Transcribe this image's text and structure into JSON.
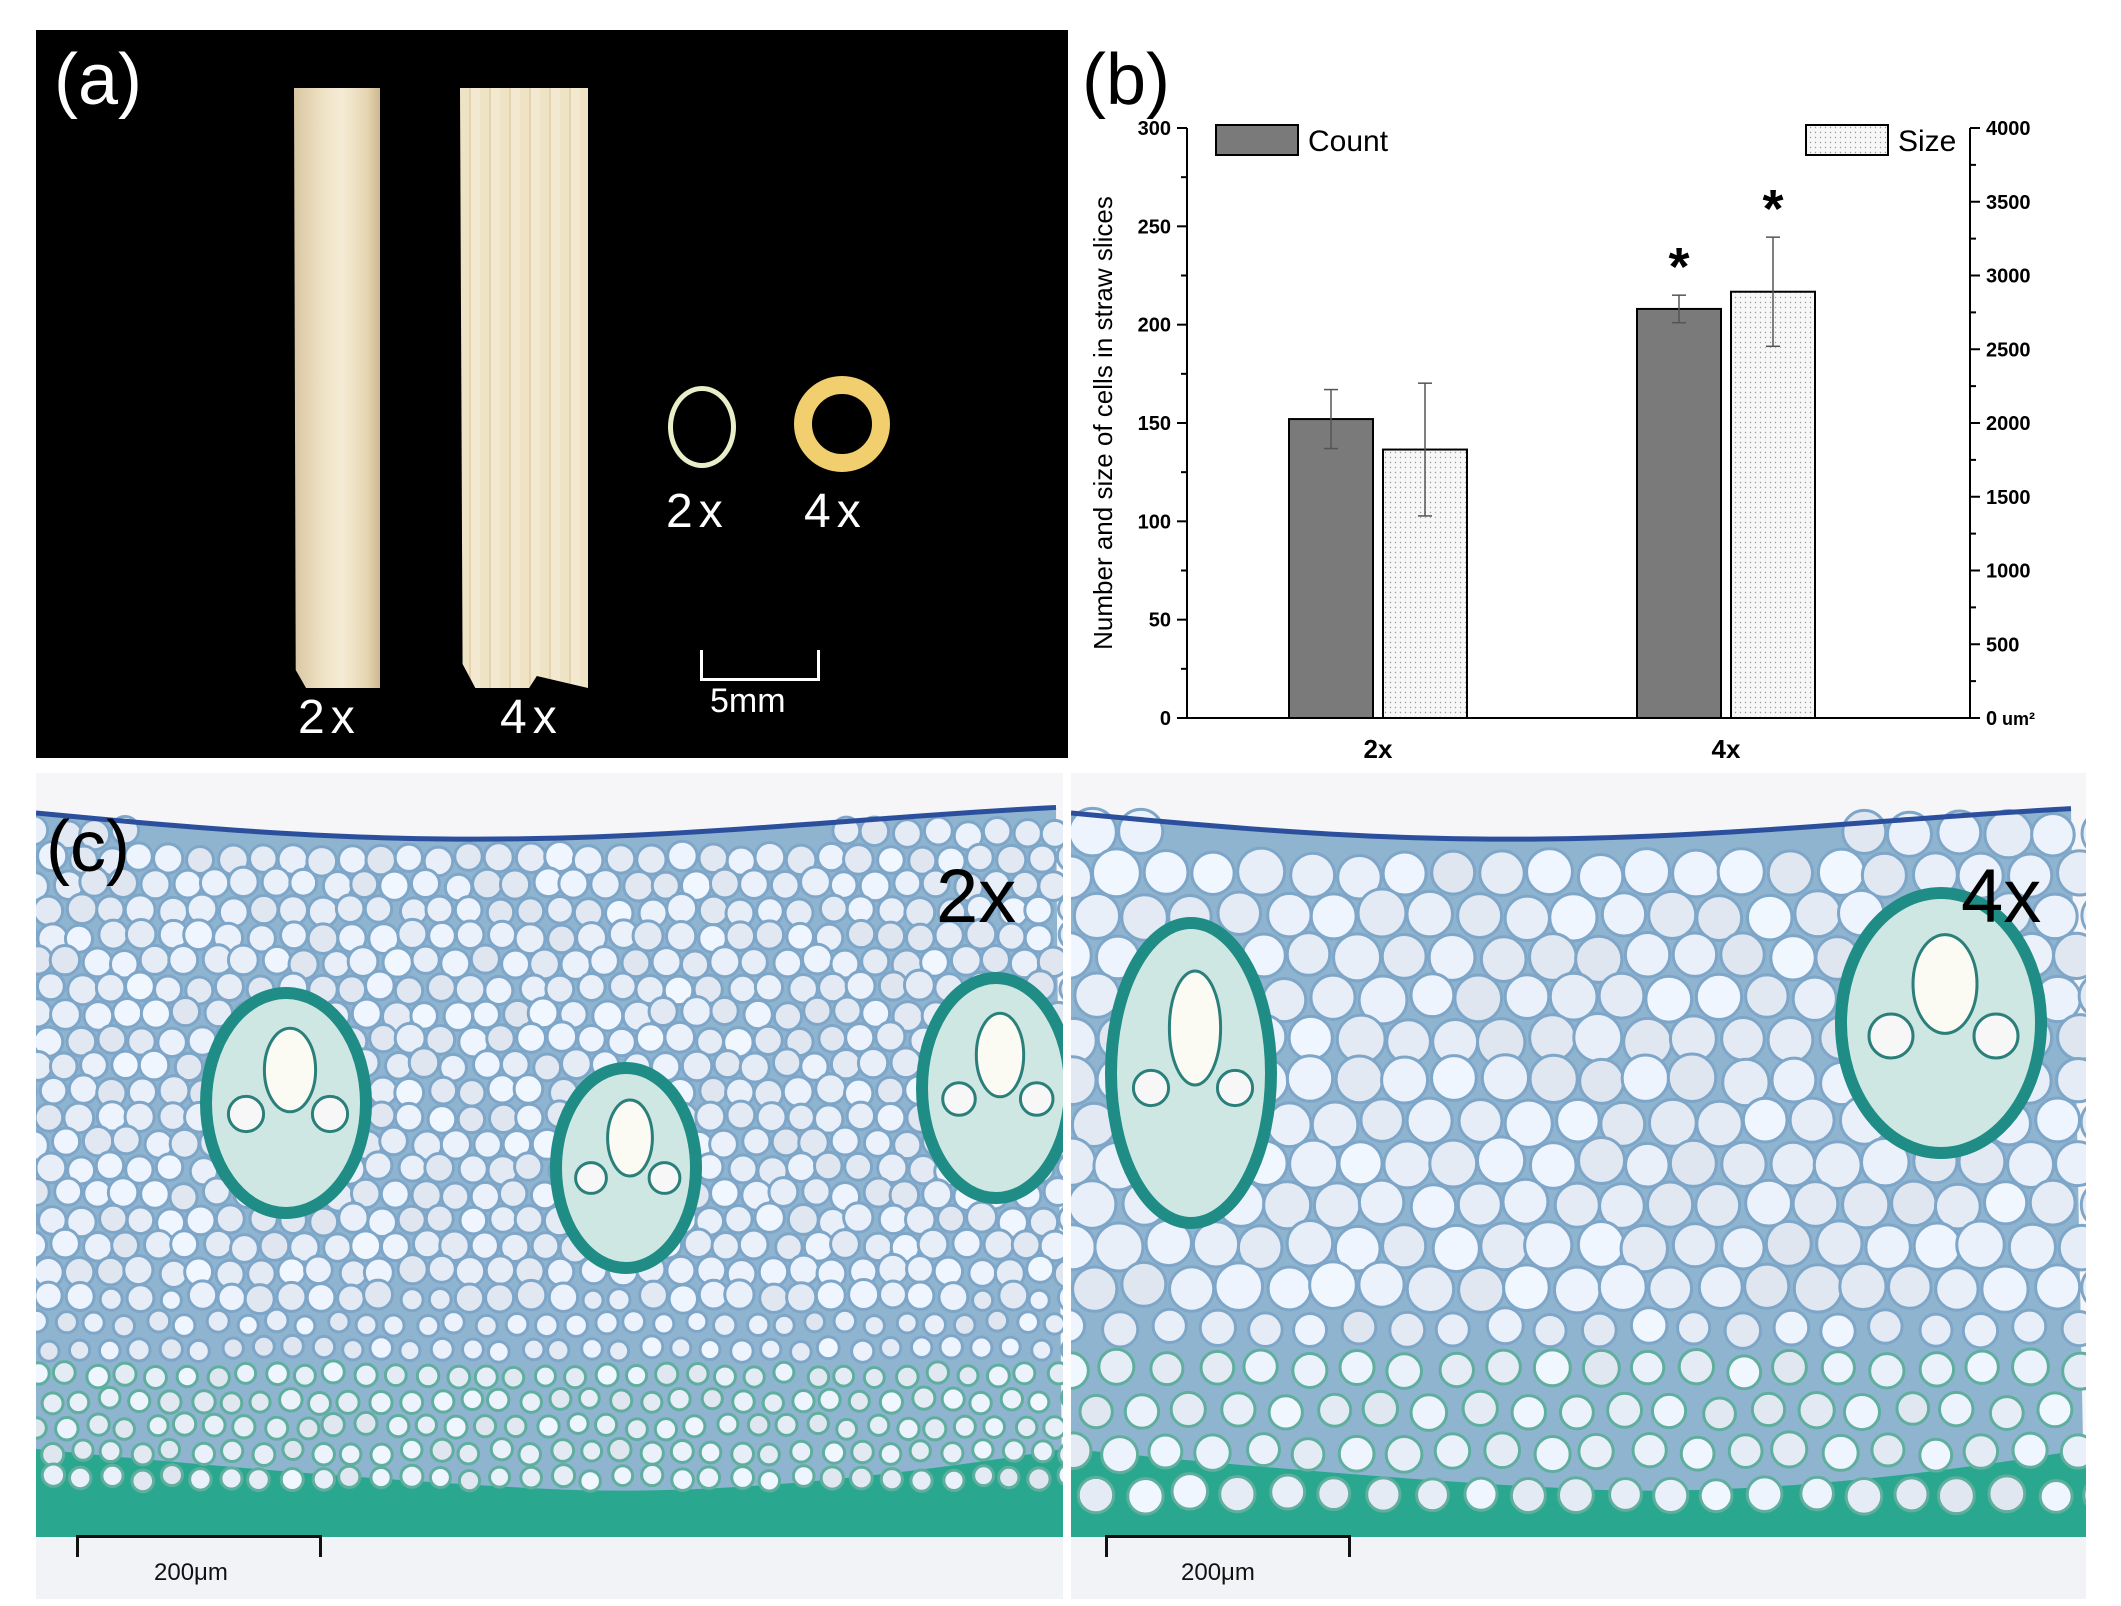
{
  "panel_a": {
    "letter": "(a)",
    "straw_labels": [
      "2x",
      "4x"
    ],
    "ring_labels": [
      "2x",
      "4x"
    ],
    "scale_label": "5mm"
  },
  "panel_b": {
    "letter": "(b)"
  },
  "panel_c": {
    "letter": "(c)",
    "left_label": "2x",
    "right_label": "4x",
    "scale_left": "200μm",
    "scale_right": "200μm"
  },
  "chart_data": {
    "type": "bar",
    "categories": [
      "2x",
      "4x"
    ],
    "ylabel": "Number and size of cells in straw slices",
    "ylim": [
      0,
      300
    ],
    "y2lim": [
      0,
      4000
    ],
    "y_ticks": [
      0,
      50,
      100,
      150,
      200,
      250,
      300
    ],
    "y2_ticks": [
      "0",
      "500",
      "1000",
      "1500",
      "2000",
      "2500",
      "3000",
      "3500",
      "4000"
    ],
    "y2_unit": "um²",
    "legend_count": "Count",
    "legend_size": "Size",
    "series": [
      {
        "name": "Count",
        "axis": "left",
        "values": [
          152,
          208
        ],
        "errors": [
          15,
          7
        ],
        "color": "#7a7a7a"
      },
      {
        "name": "Size",
        "axis": "right",
        "values": [
          1820,
          2890
        ],
        "errors": [
          450,
          370
        ],
        "color": "#f4f4f4"
      }
    ],
    "significance": [
      "",
      "*"
    ]
  }
}
